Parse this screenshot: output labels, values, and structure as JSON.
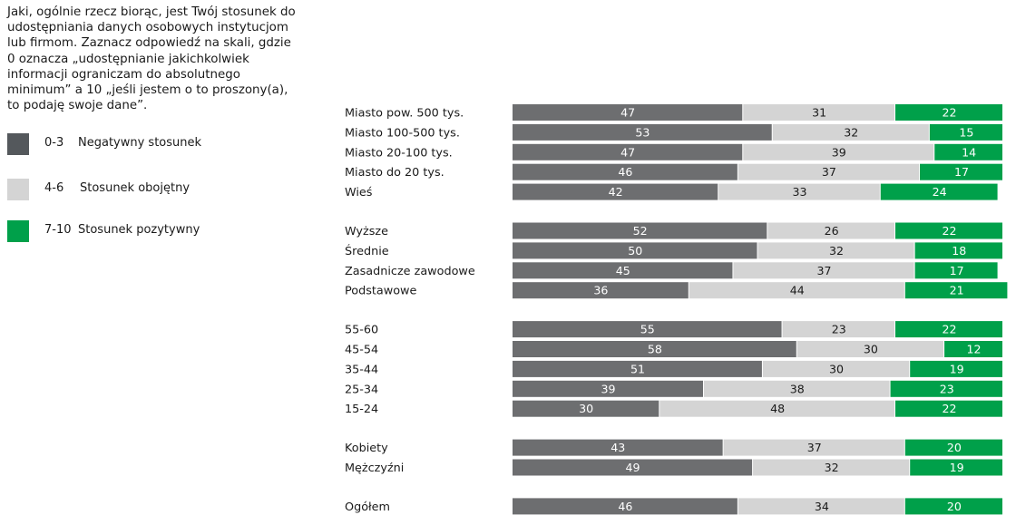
{
  "question": "Jaki, ogólnie rzecz biorąc, jest Twój stosunek do\nudostępniania danych osobowych instytucjom\nlub firmom. Zaznacz odpowiedź na skali, gdzie\n0 oznacza „udostępnianie jakichkolwiek\ninformacji ograniczam do absolutnego\nminimum” a 10 „jeśli jestem o to proszony(a),\nto podaję swoje dane”.",
  "legend": [
    {
      "range": "0-3",
      "label": "Negatywny stosunek",
      "color": "#54585c"
    },
    {
      "range": "4-6",
      "label": "Stosunek obojętny",
      "color": "#d4d4d4"
    },
    {
      "range": "7-10",
      "label": "Stosunek pozytywny",
      "color": "#00a04a"
    }
  ],
  "chart_data": {
    "type": "bar",
    "orientation": "horizontal",
    "stacked": true,
    "xlim": [
      0,
      100
    ],
    "categories": [
      "Miasto pow. 500 tys.",
      "Miasto 100-500 tys.",
      "Miasto 20-100 tys.",
      "Miasto do 20 tys.",
      "Wieś",
      "Wyższe",
      "Średnie",
      "Zasadnicze zawodowe",
      "Podstawowe",
      "55-60",
      "45-54",
      "35-44",
      "25-34",
      "15-24",
      "Kobiety",
      "Mężczyźni",
      "Ogółem"
    ],
    "groups": [
      5,
      4,
      5,
      2,
      1
    ],
    "series": [
      {
        "range": "0-3",
        "color": "#6d6e70",
        "values": [
          47,
          53,
          47,
          46,
          42,
          52,
          50,
          45,
          36,
          55,
          58,
          51,
          39,
          30,
          43,
          49,
          46
        ]
      },
      {
        "range": "4-6",
        "color": "#d4d4d4",
        "values": [
          31,
          32,
          39,
          37,
          33,
          26,
          32,
          37,
          44,
          23,
          30,
          30,
          38,
          48,
          37,
          32,
          34
        ]
      },
      {
        "range": "7-10",
        "color": "#00a04a",
        "values": [
          22,
          15,
          14,
          17,
          24,
          22,
          18,
          17,
          21,
          22,
          12,
          19,
          23,
          22,
          20,
          19,
          20
        ]
      }
    ],
    "label_colors": [
      "#ffffff",
      "#1a1a1a",
      "#ffffff"
    ],
    "grid": false
  }
}
